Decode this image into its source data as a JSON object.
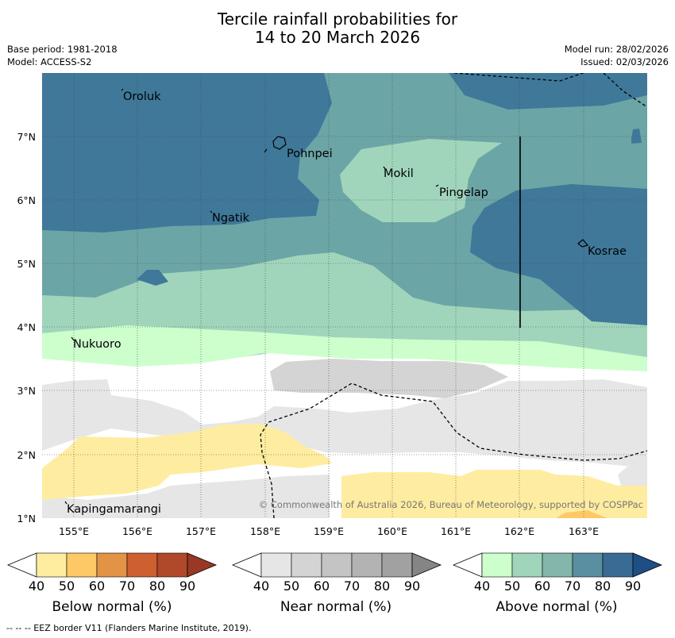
{
  "header": {
    "title_line1": "Tercile rainfall probabilities for",
    "title_line2": "14 to 20 March 2026",
    "base_period": "Base period: 1981-2018",
    "model": "Model: ACCESS-S2",
    "model_run": "Model run: 28/02/2026",
    "issued": "Issued: 02/03/2026"
  },
  "map": {
    "lat_labels": [
      "7°N",
      "6°N",
      "5°N",
      "4°N",
      "3°N",
      "2°N",
      "1°N"
    ],
    "lon_labels": [
      "155°E",
      "156°E",
      "157°E",
      "158°E",
      "159°E",
      "160°E",
      "161°E",
      "162°E",
      "163°E"
    ],
    "places": [
      "Oroluk",
      "Pohnpei",
      "Mokil",
      "Pingelap",
      "Ngatik",
      "Kosrae",
      "Nukuoro",
      "Kapingamarangi"
    ],
    "copyright": "© Commonwealth of Australia 2026, Bureau of Meteorology, supported by COSPPac"
  },
  "colorbars": {
    "ticks": [
      "40",
      "50",
      "60",
      "70",
      "80",
      "90"
    ],
    "below_label": "Below normal (%)",
    "near_label": "Near normal (%)",
    "above_label": "Above normal (%)",
    "below_colors": [
      "#ffffff",
      "#feeda0",
      "#fdc966",
      "#e39346",
      "#cd5f30",
      "#b0482a",
      "#983825"
    ],
    "near_colors": [
      "#ffffff",
      "#e6e6e6",
      "#d4d4d4",
      "#c4c4c4",
      "#b3b3b3",
      "#a1a1a1",
      "#858585"
    ],
    "above_colors": [
      "#ffffff",
      "#ccffcc",
      "#a0d5bb",
      "#85b6ab",
      "#598fa0",
      "#3a6b94",
      "#1d4f85"
    ]
  },
  "footer": {
    "eez_note": "--  --  -- EEZ border V11 (Flanders Marine Institute, 2019)."
  }
}
